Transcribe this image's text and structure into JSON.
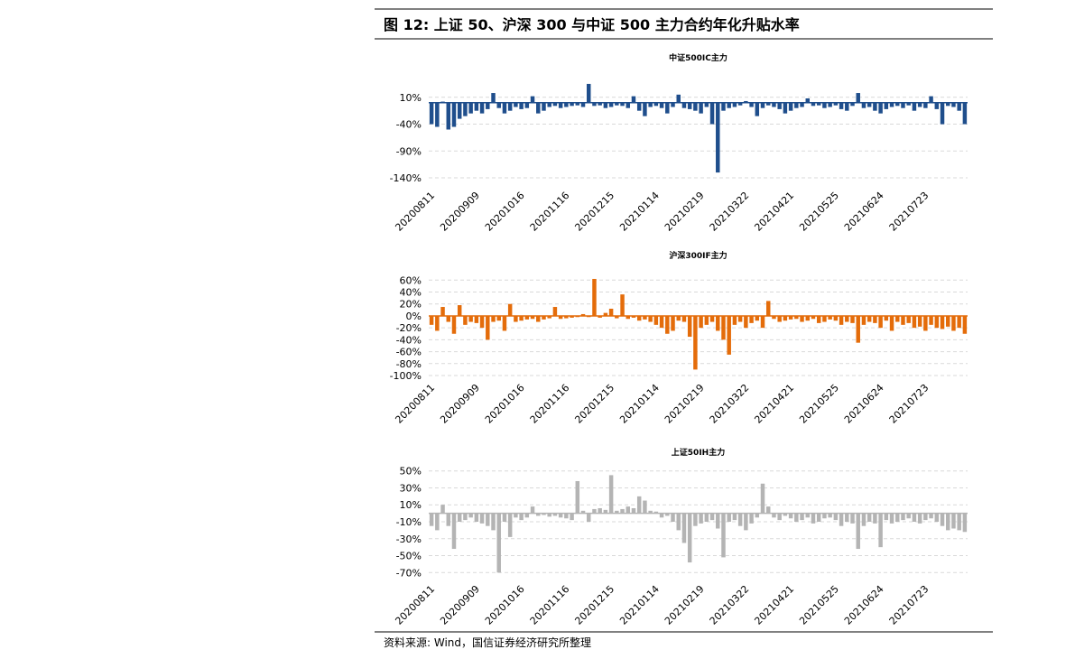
{
  "title": "图 12:  上证 50、沪深 300 与中证 500 主力合约年化升贴水率",
  "source": "资料来源: Wind，国信证券经济研究所整理",
  "chart_data": [
    {
      "type": "bar",
      "title": "中证500IC主力",
      "color": "#1f4e8c",
      "grid": true,
      "categories": [
        "20200811",
        null,
        null,
        null,
        null,
        null,
        null,
        null,
        "20200909",
        null,
        null,
        null,
        null,
        null,
        null,
        null,
        "20201016",
        null,
        null,
        null,
        null,
        null,
        null,
        null,
        "20201116",
        null,
        null,
        null,
        null,
        null,
        null,
        null,
        "20201215",
        null,
        null,
        null,
        null,
        null,
        null,
        null,
        "20210114",
        null,
        null,
        null,
        null,
        null,
        null,
        null,
        "20210219",
        null,
        null,
        null,
        null,
        null,
        null,
        null,
        "20210322",
        null,
        null,
        null,
        null,
        null,
        null,
        null,
        "20210421",
        null,
        null,
        null,
        null,
        null,
        null,
        null,
        "20210525",
        null,
        null,
        null,
        null,
        null,
        null,
        null,
        "20210624",
        null,
        null,
        null,
        null,
        null,
        null,
        null,
        "20210723",
        null,
        null,
        null,
        null,
        null,
        null,
        null
      ],
      "values": [
        -40,
        -45,
        2,
        -50,
        -45,
        -30,
        -25,
        -20,
        -15,
        -20,
        -12,
        18,
        -10,
        -20,
        -15,
        -8,
        -12,
        -10,
        12,
        -20,
        -15,
        -8,
        -6,
        -10,
        -8,
        -6,
        -5,
        -8,
        35,
        -6,
        -5,
        -10,
        -8,
        -5,
        -6,
        -10,
        12,
        -15,
        -25,
        -8,
        -6,
        -10,
        -20,
        -8,
        15,
        -10,
        -12,
        -15,
        -20,
        -8,
        -40,
        -130,
        -15,
        -10,
        -8,
        -5,
        3,
        -8,
        -25,
        -10,
        -5,
        -8,
        -12,
        -20,
        -15,
        -10,
        -8,
        8,
        -6,
        -5,
        -10,
        -8,
        -5,
        -12,
        -15,
        -6,
        18,
        -10,
        -8,
        -15,
        -20,
        -12,
        -8,
        -6,
        -10,
        -5,
        -15,
        -8,
        -10,
        12,
        -12,
        -40,
        -6,
        -8,
        -15,
        -40
      ],
      "ylim": [
        -150,
        50
      ],
      "yticks": [
        {
          "value": 10,
          "label": "10%"
        },
        {
          "value": -40,
          "label": "-40%"
        },
        {
          "value": -90,
          "label": "-90%"
        },
        {
          "value": -140,
          "label": "-140%"
        }
      ]
    },
    {
      "type": "bar",
      "title": "沪深300IF主力",
      "color": "#e46c0a",
      "grid": true,
      "categories": [
        "20200811",
        null,
        null,
        null,
        null,
        null,
        null,
        null,
        "20200909",
        null,
        null,
        null,
        null,
        null,
        null,
        null,
        "20201016",
        null,
        null,
        null,
        null,
        null,
        null,
        null,
        "20201116",
        null,
        null,
        null,
        null,
        null,
        null,
        null,
        "20201215",
        null,
        null,
        null,
        null,
        null,
        null,
        null,
        "20210114",
        null,
        null,
        null,
        null,
        null,
        null,
        null,
        "20210219",
        null,
        null,
        null,
        null,
        null,
        null,
        null,
        "20210322",
        null,
        null,
        null,
        null,
        null,
        null,
        null,
        "20210421",
        null,
        null,
        null,
        null,
        null,
        null,
        null,
        "20210525",
        null,
        null,
        null,
        null,
        null,
        null,
        null,
        "20210624",
        null,
        null,
        null,
        null,
        null,
        null,
        null,
        "20210723",
        null,
        null,
        null,
        null,
        null,
        null,
        null
      ],
      "values": [
        -15,
        -25,
        15,
        -10,
        -30,
        18,
        -15,
        -10,
        -12,
        -20,
        -40,
        -10,
        -8,
        -25,
        20,
        -10,
        -8,
        -6,
        -5,
        -10,
        -6,
        -4,
        15,
        -5,
        -4,
        -3,
        -2,
        3,
        -2,
        62,
        -3,
        5,
        12,
        -4,
        36,
        -5,
        -3,
        -8,
        -6,
        -10,
        -15,
        -20,
        -30,
        -25,
        -8,
        -10,
        -35,
        -90,
        -20,
        -15,
        -10,
        -25,
        -40,
        -65,
        -15,
        -10,
        -20,
        -12,
        -8,
        -20,
        25,
        -5,
        -10,
        -8,
        -6,
        -5,
        -10,
        -8,
        -5,
        -12,
        -10,
        -6,
        -8,
        -15,
        -10,
        -12,
        -45,
        -15,
        -10,
        -12,
        -20,
        -8,
        -25,
        -10,
        -15,
        -12,
        -20,
        -18,
        -25,
        -15,
        -20,
        -22,
        -18,
        -25,
        -20,
        -30
      ],
      "ylim": [
        -100,
        65
      ],
      "yticks": [
        {
          "value": 60,
          "label": "60%"
        },
        {
          "value": 40,
          "label": "40%"
        },
        {
          "value": 20,
          "label": "20%"
        },
        {
          "value": 0,
          "label": "0%"
        },
        {
          "value": -20,
          "label": "-20%"
        },
        {
          "value": -40,
          "label": "-40%"
        },
        {
          "value": -60,
          "label": "-60%"
        },
        {
          "value": -80,
          "label": "-80%"
        },
        {
          "value": -100,
          "label": "-100%"
        }
      ]
    },
    {
      "type": "bar",
      "title": "上证50IH主力",
      "color": "#b4b4b4",
      "grid": true,
      "categories": [
        "20200811",
        null,
        null,
        null,
        null,
        null,
        null,
        null,
        "20200909",
        null,
        null,
        null,
        null,
        null,
        null,
        null,
        "20201016",
        null,
        null,
        null,
        null,
        null,
        null,
        null,
        "20201116",
        null,
        null,
        null,
        null,
        null,
        null,
        null,
        "20201215",
        null,
        null,
        null,
        null,
        null,
        null,
        null,
        "20210114",
        null,
        null,
        null,
        null,
        null,
        null,
        null,
        "20210219",
        null,
        null,
        null,
        null,
        null,
        null,
        null,
        "20210322",
        null,
        null,
        null,
        null,
        null,
        null,
        null,
        "20210421",
        null,
        null,
        null,
        null,
        null,
        null,
        null,
        "20210525",
        null,
        null,
        null,
        null,
        null,
        null,
        null,
        "20210624",
        null,
        null,
        null,
        null,
        null,
        null,
        null,
        "20210723",
        null,
        null,
        null,
        null,
        null,
        null,
        null
      ],
      "values": [
        -15,
        -20,
        10,
        -15,
        -42,
        -10,
        -8,
        -5,
        -10,
        -12,
        -15,
        -20,
        -70,
        -10,
        -28,
        -5,
        -8,
        -5,
        8,
        -3,
        -2,
        -4,
        -3,
        -5,
        -6,
        -8,
        38,
        3,
        -10,
        5,
        6,
        4,
        45,
        3,
        5,
        8,
        6,
        20,
        15,
        3,
        2,
        -5,
        -3,
        -10,
        -20,
        -35,
        -58,
        -15,
        -12,
        -10,
        -8,
        -18,
        -52,
        -10,
        -8,
        -15,
        -20,
        -12,
        -5,
        35,
        8,
        -5,
        -8,
        -3,
        -6,
        -10,
        -8,
        -5,
        -12,
        -10,
        -6,
        -5,
        -8,
        -15,
        -10,
        -12,
        -42,
        -15,
        -10,
        -12,
        -40,
        -8,
        -12,
        -10,
        -8,
        -6,
        -10,
        -12,
        -8,
        -6,
        -10,
        -15,
        -20,
        -18,
        -20,
        -22
      ],
      "ylim": [
        -75,
        55
      ],
      "yticks": [
        {
          "value": 50,
          "label": "50%"
        },
        {
          "value": 30,
          "label": "30%"
        },
        {
          "value": 10,
          "label": "10%"
        },
        {
          "value": -10,
          "label": "-10%"
        },
        {
          "value": -30,
          "label": "-30%"
        },
        {
          "value": -50,
          "label": "-50%"
        },
        {
          "value": -70,
          "label": "-70%"
        }
      ]
    }
  ]
}
